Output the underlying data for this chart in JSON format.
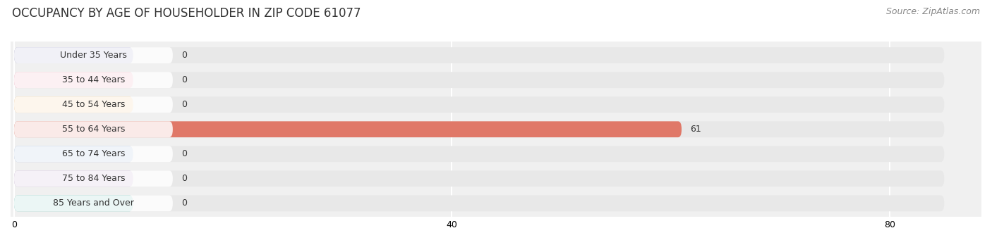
{
  "title": "OCCUPANCY BY AGE OF HOUSEHOLDER IN ZIP CODE 61077",
  "source": "Source: ZipAtlas.com",
  "categories": [
    "Under 35 Years",
    "35 to 44 Years",
    "45 to 54 Years",
    "55 to 64 Years",
    "65 to 74 Years",
    "75 to 84 Years",
    "85 Years and Over"
  ],
  "values": [
    0,
    0,
    0,
    61,
    0,
    0,
    0
  ],
  "bar_colors": [
    "#a8a8cc",
    "#f0a0b4",
    "#f5c88c",
    "#e07868",
    "#a0b8d8",
    "#c0a8cc",
    "#80c8c0"
  ],
  "bar_bg_color": "#e8e8e8",
  "label_bg_color": "#ffffff",
  "xlim_max": 85,
  "xticks": [
    0,
    40,
    80
  ],
  "title_fontsize": 12,
  "source_fontsize": 9,
  "label_fontsize": 9,
  "value_fontsize": 9,
  "background_color": "#ffffff",
  "plot_bg_color": "#f0f0f0",
  "grid_color": "#ffffff"
}
